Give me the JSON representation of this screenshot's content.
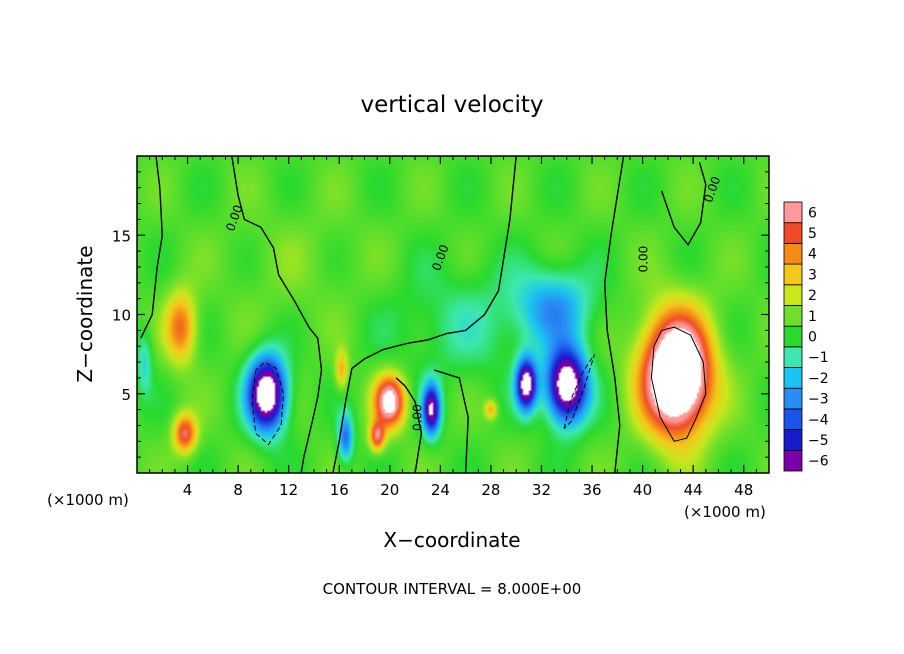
{
  "chart_data": {
    "type": "heatmap",
    "title": "vertical velocity",
    "xlabel": "X−coordinate",
    "ylabel": "Z−coordinate",
    "x_unit_label": "(×1000 m)",
    "x_unit_label_right": "(×1000 m)",
    "xlim": [
      0,
      50
    ],
    "ylim": [
      0,
      20
    ],
    "x_ticks": [
      4,
      8,
      12,
      16,
      20,
      24,
      28,
      32,
      36,
      40,
      44,
      48
    ],
    "y_ticks": [
      5,
      10,
      15
    ],
    "footer": "CONTOUR INTERVAL = 8.000E+00",
    "contour_label": "0.00",
    "colorbar": {
      "levels": [
        -6,
        -5,
        -4,
        -3,
        -2,
        -1,
        0,
        1,
        2,
        3,
        4,
        5,
        6
      ],
      "labels": [
        "−6",
        "−5",
        "−4",
        "−3",
        "−2",
        "−1",
        "0",
        "1",
        "2",
        "3",
        "4",
        "5",
        "6"
      ],
      "colors": [
        "#7a00a8",
        "#1a1acd",
        "#1a54e8",
        "#2a8cf5",
        "#19c4f0",
        "#3de8b0",
        "#29d92e",
        "#6ee02a",
        "#c8e81c",
        "#f5c81c",
        "#f58a14",
        "#f04a28",
        "#ff9a9a"
      ]
    },
    "background_value": 0.5,
    "cells": [
      {
        "x": 3.5,
        "z": 9.2,
        "sx": 1.2,
        "sz": 2.2,
        "w": 4.0
      },
      {
        "x": 3.8,
        "z": 2.5,
        "sx": 0.9,
        "sz": 1.2,
        "w": 5.0
      },
      {
        "x": 10.3,
        "z": 5.0,
        "sx": 1.5,
        "sz": 2.3,
        "w": -9.0
      },
      {
        "x": 16.5,
        "z": 2.2,
        "sx": 0.6,
        "sz": 1.5,
        "w": -4.0
      },
      {
        "x": 16.2,
        "z": 6.5,
        "sx": 0.5,
        "sz": 1.2,
        "w": 3.0
      },
      {
        "x": 20.0,
        "z": 4.5,
        "sx": 1.2,
        "sz": 1.6,
        "w": 7.0
      },
      {
        "x": 19.0,
        "z": 2.3,
        "sx": 0.6,
        "sz": 0.9,
        "w": 5.0
      },
      {
        "x": 23.3,
        "z": 4.0,
        "sx": 0.7,
        "sz": 1.6,
        "w": -7.0
      },
      {
        "x": 28.0,
        "z": 4.0,
        "sx": 0.5,
        "sz": 0.6,
        "w": 3.0
      },
      {
        "x": 30.8,
        "z": 5.6,
        "sx": 0.8,
        "sz": 1.6,
        "w": -8.0
      },
      {
        "x": 34.0,
        "z": 5.5,
        "sx": 1.6,
        "sz": 2.3,
        "w": -9.0
      },
      {
        "x": 33.0,
        "z": 10.5,
        "sx": 3.0,
        "sz": 2.4,
        "w": -3.0
      },
      {
        "x": 42.7,
        "z": 6.2,
        "sx": 2.6,
        "sz": 3.6,
        "w": 11.0
      },
      {
        "x": 26.0,
        "z": 9.5,
        "sx": 6.0,
        "sz": 3.5,
        "w": -1.2
      },
      {
        "x": 13.0,
        "z": 13.0,
        "sx": 6.0,
        "sz": 4.0,
        "w": 0.4
      },
      {
        "x": 0.6,
        "z": 7.0,
        "sx": 0.6,
        "sz": 2.0,
        "w": -2.0
      }
    ],
    "contour_zero": [
      [
        [
          1.5,
          20
        ],
        [
          1.8,
          18
        ],
        [
          2.0,
          15
        ],
        [
          1.6,
          13
        ],
        [
          1.2,
          10
        ],
        [
          0.3,
          8.5
        ]
      ],
      [
        [
          7.5,
          20
        ],
        [
          8.0,
          17.5
        ],
        [
          8.5,
          16
        ],
        [
          9.8,
          15.5
        ],
        [
          10.8,
          14.2
        ],
        [
          11.2,
          12.5
        ],
        [
          12.5,
          10.8
        ],
        [
          13.6,
          9.2
        ],
        [
          14.3,
          8.5
        ],
        [
          14.6,
          6.5
        ],
        [
          14.3,
          4.8
        ],
        [
          13.8,
          3.0
        ],
        [
          13.2,
          1.0
        ],
        [
          13.0,
          0
        ]
      ],
      [
        [
          15.5,
          0
        ],
        [
          16.0,
          2.0
        ],
        [
          16.5,
          4.5
        ],
        [
          17.0,
          6.6
        ],
        [
          18.0,
          7.2
        ],
        [
          19.5,
          7.8
        ],
        [
          21.5,
          8.2
        ],
        [
          23.0,
          8.4
        ],
        [
          24.5,
          8.8
        ],
        [
          26.0,
          9.0
        ],
        [
          27.5,
          10.0
        ],
        [
          28.6,
          11.5
        ],
        [
          29.0,
          13.5
        ],
        [
          29.5,
          16.0
        ],
        [
          30.0,
          20
        ]
      ],
      [
        [
          22.0,
          0
        ],
        [
          22.5,
          2.5
        ],
        [
          22.0,
          4.5
        ],
        [
          21.2,
          5.5
        ],
        [
          20.5,
          6.0
        ]
      ],
      [
        [
          37.8,
          0
        ],
        [
          38.2,
          3.0
        ],
        [
          37.8,
          6.0
        ],
        [
          37.2,
          9.0
        ],
        [
          37.0,
          12.0
        ],
        [
          37.5,
          15.0
        ],
        [
          38.0,
          17.5
        ],
        [
          38.5,
          20
        ]
      ],
      [
        [
          41.5,
          17.8
        ],
        [
          42.5,
          15.5
        ],
        [
          43.6,
          14.4
        ],
        [
          44.6,
          15.8
        ],
        [
          45.0,
          18.2
        ],
        [
          44.5,
          19.6
        ]
      ],
      [
        [
          23.5,
          6.5
        ],
        [
          25.5,
          6.0
        ],
        [
          26.2,
          3.5
        ],
        [
          26.0,
          0
        ]
      ]
    ],
    "contour_neg": [
      [
        [
          9.4,
          6.5
        ],
        [
          9.1,
          4.5
        ],
        [
          9.4,
          2.5
        ],
        [
          10.4,
          1.8
        ],
        [
          11.4,
          3.0
        ],
        [
          11.6,
          5.0
        ],
        [
          11.0,
          6.6
        ],
        [
          10.1,
          7.0
        ],
        [
          9.4,
          6.5
        ]
      ],
      [
        [
          33.8,
          2.8
        ],
        [
          34.3,
          4.6
        ],
        [
          35.3,
          6.4
        ],
        [
          36.2,
          7.5
        ],
        [
          35.3,
          5.2
        ],
        [
          34.4,
          3.3
        ],
        [
          33.8,
          2.8
        ]
      ]
    ],
    "contour_pos": [
      [
        [
          40.9,
          8.0
        ],
        [
          40.7,
          6.0
        ],
        [
          41.4,
          3.5
        ],
        [
          42.5,
          2.0
        ],
        [
          43.5,
          2.2
        ],
        [
          44.2,
          3.4
        ],
        [
          45.0,
          5.0
        ],
        [
          44.8,
          7.0
        ],
        [
          43.8,
          8.7
        ],
        [
          42.5,
          9.2
        ],
        [
          41.5,
          9.0
        ],
        [
          40.9,
          8.0
        ]
      ]
    ]
  }
}
